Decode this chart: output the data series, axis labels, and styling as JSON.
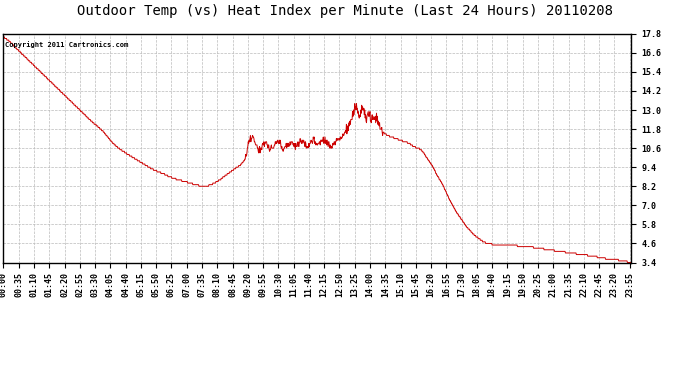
{
  "title": "Outdoor Temp (vs) Heat Index per Minute (Last 24 Hours) 20110208",
  "copyright_text": "Copyright 2011 Cartronics.com",
  "line_color": "#cc0000",
  "bg_color": "#ffffff",
  "plot_bg_color": "#ffffff",
  "grid_color": "#bbbbbb",
  "grid_style": "--",
  "ylim": [
    3.4,
    17.8
  ],
  "yticks": [
    3.4,
    4.6,
    5.8,
    7.0,
    8.2,
    9.4,
    10.6,
    11.8,
    13.0,
    14.2,
    15.4,
    16.6,
    17.8
  ],
  "title_fontsize": 10,
  "tick_fontsize": 6,
  "copyright_fontsize": 5,
  "x_tick_labels": [
    "00:00",
    "00:35",
    "01:10",
    "01:45",
    "02:20",
    "02:55",
    "03:30",
    "04:05",
    "04:40",
    "05:15",
    "05:50",
    "06:25",
    "07:00",
    "07:35",
    "08:10",
    "08:45",
    "09:20",
    "09:55",
    "10:30",
    "11:05",
    "11:40",
    "12:15",
    "12:50",
    "13:25",
    "14:00",
    "14:35",
    "15:10",
    "15:45",
    "16:20",
    "16:55",
    "17:30",
    "18:05",
    "18:40",
    "19:15",
    "19:50",
    "20:25",
    "21:00",
    "21:35",
    "22:10",
    "22:45",
    "23:20",
    "23:55"
  ]
}
